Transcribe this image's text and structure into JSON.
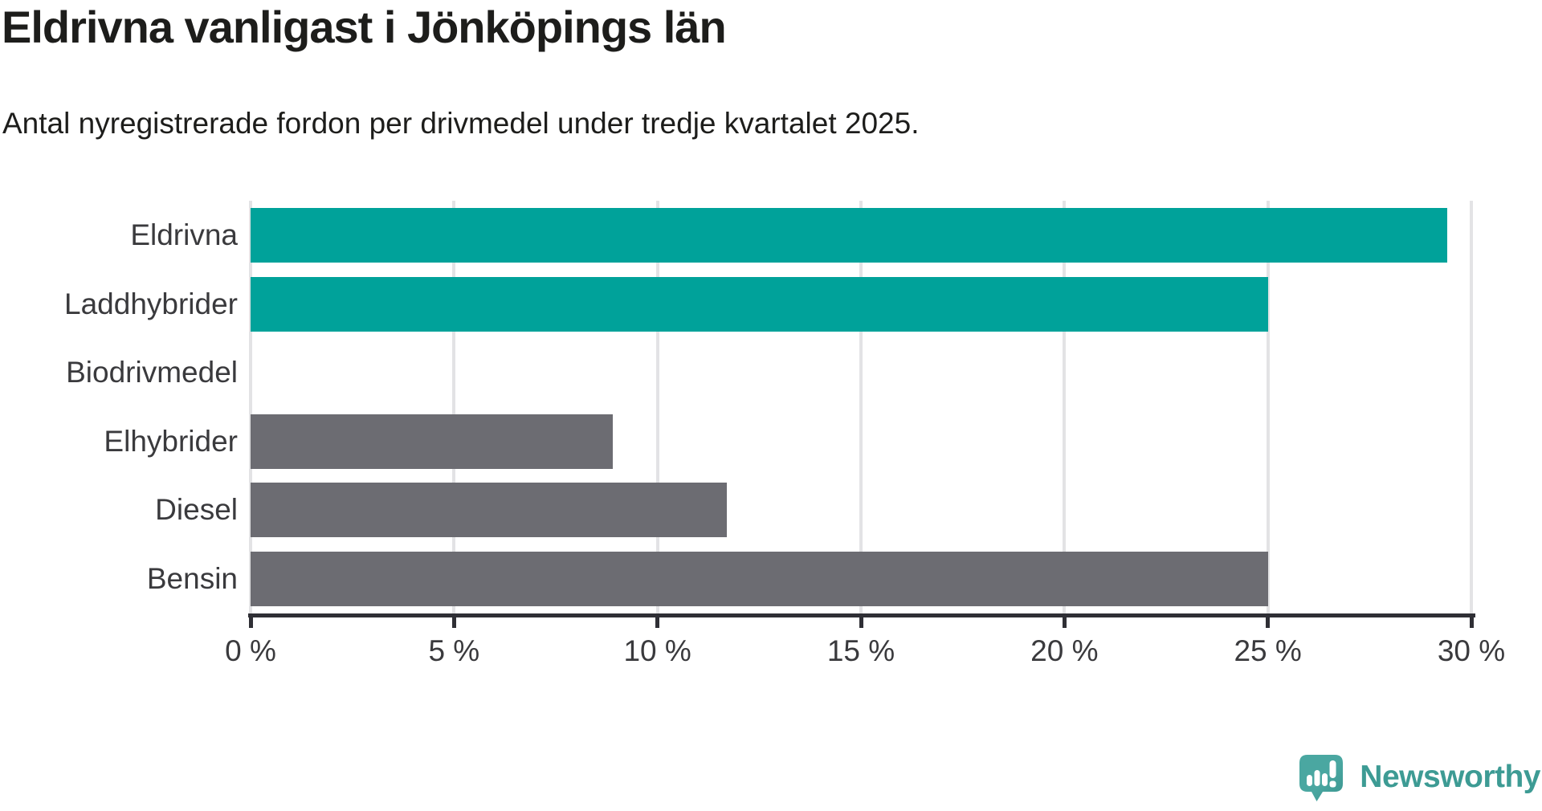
{
  "chart_data": {
    "type": "bar",
    "orientation": "horizontal",
    "title": "Eldrivna vanligast i Jönköpings län",
    "subtitle": "Antal nyregistrerade fordon per drivmedel under tredje kvartalet 2025.",
    "categories": [
      "Eldrivna",
      "Laddhybrider",
      "Biodrivmedel",
      "Elhybrider",
      "Diesel",
      "Bensin"
    ],
    "values": [
      29.4,
      25.0,
      0,
      8.9,
      11.7,
      25.0
    ],
    "unit": "%",
    "xlabel": "",
    "ylabel": "",
    "xlim": [
      0,
      30
    ],
    "x_ticks": [
      0,
      5,
      10,
      15,
      20,
      25,
      30
    ],
    "x_tick_labels": [
      "0 %",
      "5 %",
      "10 %",
      "15 %",
      "20 %",
      "25 %",
      "30 %"
    ],
    "bar_colors": [
      "#00a29a",
      "#00a29a",
      "#00a29a",
      "#6c6c72",
      "#6c6c72",
      "#6c6c72"
    ],
    "grid": true,
    "legend": false
  },
  "colors": {
    "accent_teal": "#00a29a",
    "neutral_gray": "#6c6c72",
    "axis": "#2f2f35",
    "gridline": "#e3e3e5",
    "title_text": "#1d1d1b",
    "label_text": "#3a3a3d",
    "logo_teal": "#3d9b94",
    "logo_icon_teal": "#4aa7a1",
    "logo_icon_shadow": "#3a948e"
  },
  "branding": {
    "logo_text": "Newsworthy"
  }
}
